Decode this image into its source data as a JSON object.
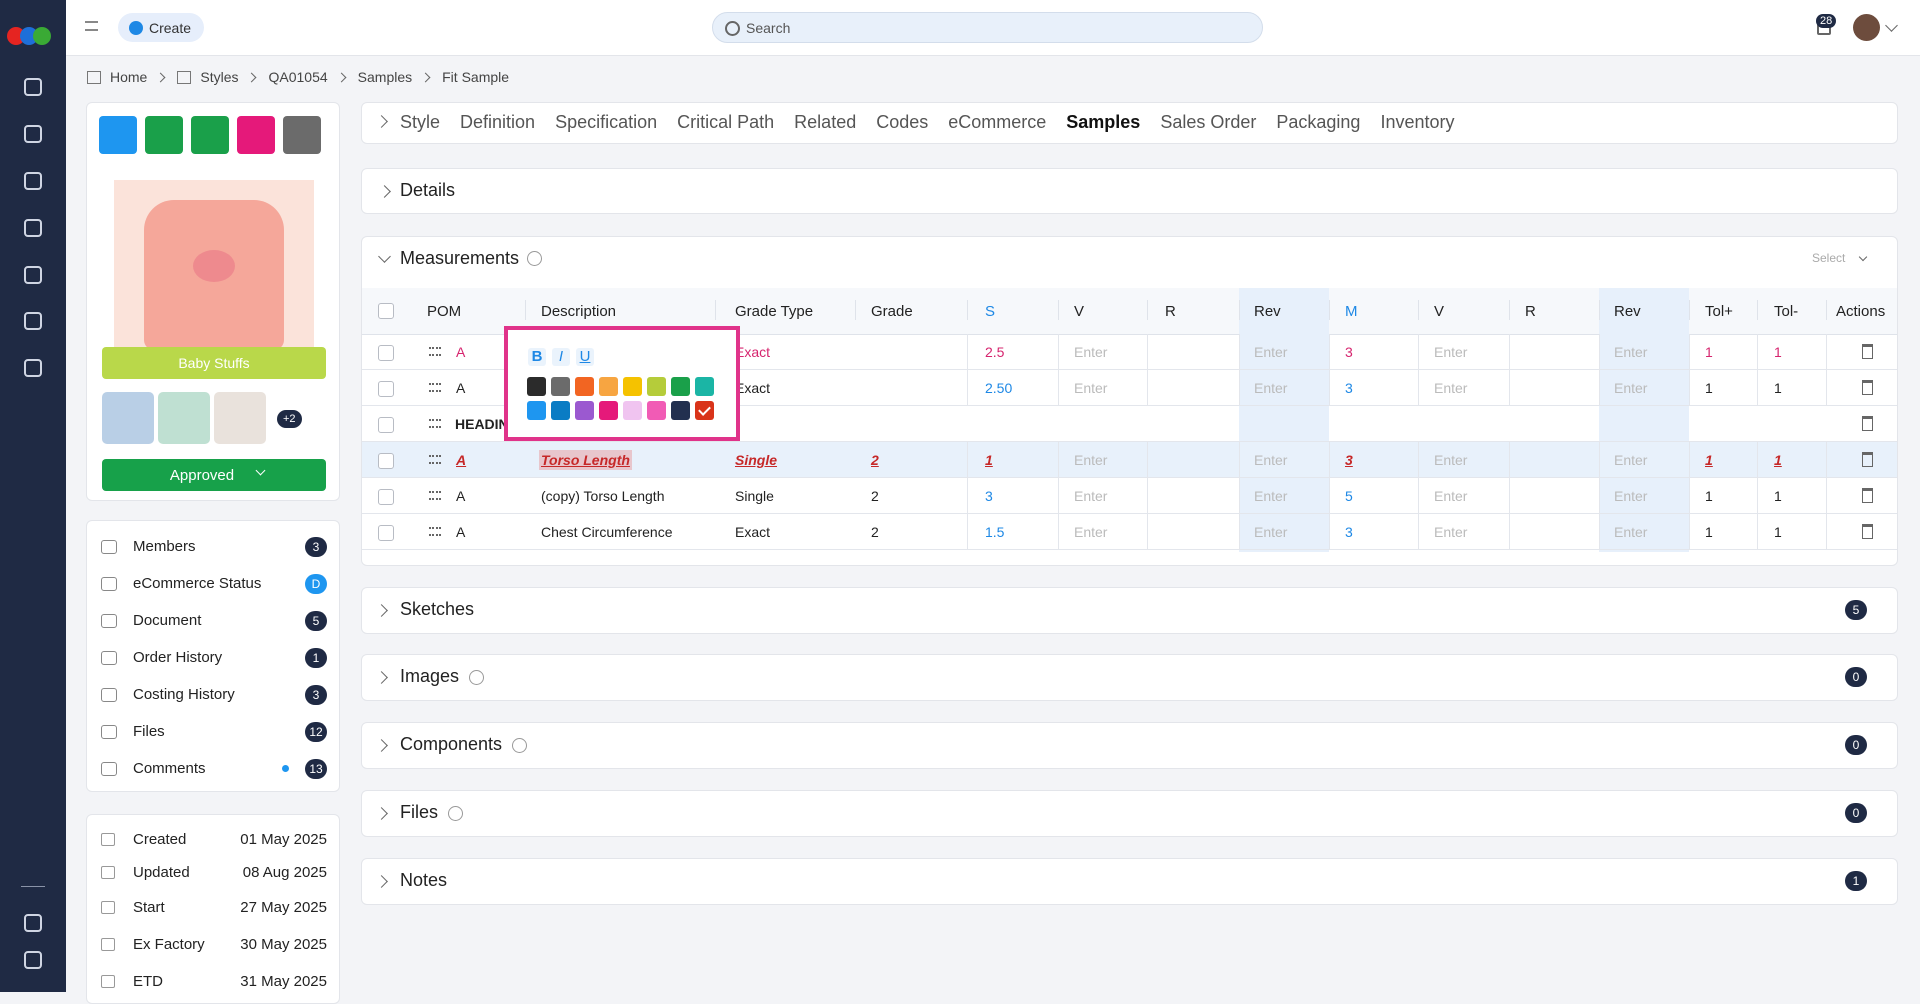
{
  "topbar": {
    "create": "Create",
    "search": "Search",
    "notifications": 28
  },
  "breadcrumb": [
    "Home",
    "Styles",
    "QA01054",
    "Samples",
    "Fit Sample"
  ],
  "tabs": [
    "Style",
    "Definition",
    "Specification",
    "Critical Path",
    "Related",
    "Codes",
    "eCommerce",
    "Samples",
    "Sales Order",
    "Packaging",
    "Inventory"
  ],
  "product": {
    "label": "Baby Stuffs",
    "more": "+2",
    "status": "Approved"
  },
  "menu": [
    {
      "label": "Members",
      "count": 3
    },
    {
      "label": "eCommerce Status",
      "count": "D"
    },
    {
      "label": "Document",
      "count": 5
    },
    {
      "label": "Order History",
      "count": 1
    },
    {
      "label": "Costing History",
      "count": 3
    },
    {
      "label": "Files",
      "count": 12
    },
    {
      "label": "Comments",
      "count": 13
    }
  ],
  "dates": [
    {
      "label": "Created",
      "value": "01 May 2025"
    },
    {
      "label": "Updated",
      "value": "08 Aug 2025"
    },
    {
      "label": "Start",
      "value": "27 May 2025"
    },
    {
      "label": "Ex Factory",
      "value": "30 May 2025"
    },
    {
      "label": "ETD",
      "value": "31 May 2025"
    }
  ],
  "details": {
    "title": "Details"
  },
  "measurements": {
    "title": "Measurements",
    "select": "Select",
    "columns": [
      "POM",
      "Description",
      "Grade Type",
      "Grade",
      "S",
      "V",
      "R",
      "Rev",
      "M",
      "V",
      "R",
      "Rev",
      "Tol+",
      "Tol-",
      "Actions"
    ],
    "rows": [
      [
        "A",
        null,
        "Exact",
        null,
        "2.5",
        "Enter",
        null,
        "Enter",
        "3",
        "Enter",
        null,
        "Enter",
        "1",
        "1"
      ],
      [
        "A",
        null,
        "Exact",
        null,
        "2.50",
        "Enter",
        null,
        "Enter",
        "3",
        "Enter",
        null,
        "Enter",
        "1",
        "1"
      ],
      [
        "HEADING",
        null,
        null,
        null,
        null,
        null,
        null,
        null,
        null,
        null,
        null,
        null,
        null,
        null
      ],
      [
        "A",
        "Torso Length",
        "Single",
        "2",
        "1",
        "Enter",
        null,
        "Enter",
        "3",
        "Enter",
        null,
        "Enter",
        "1",
        "1"
      ],
      [
        "A",
        "(copy) Torso Length",
        "Single",
        "2",
        "3",
        "Enter",
        null,
        "Enter",
        "5",
        "Enter",
        null,
        "Enter",
        "1",
        "1"
      ],
      [
        "A",
        "Chest Circumference",
        "Exact",
        "2",
        "1.5",
        "Enter",
        null,
        "Enter",
        "3",
        "Enter",
        null,
        "Enter",
        "1",
        "1"
      ]
    ]
  },
  "sections": [
    {
      "title": "Sketches",
      "count": 5
    },
    {
      "title": "Images",
      "count": 0
    },
    {
      "title": "Components",
      "count": 0
    },
    {
      "title": "Files",
      "count": 0
    },
    {
      "title": "Notes",
      "count": 1
    }
  ],
  "format_popup": {
    "buttons": [
      "B",
      "I",
      "U"
    ],
    "swatches": [
      "#2b2b2b",
      "#6b6b6b",
      "#f26522",
      "#f7a541",
      "#f5c200",
      "#b5cc3a",
      "#1aa04a",
      "#1bb5a5",
      "#1e96f0",
      "#0a7cc4",
      "#9b59d0",
      "#e5197a",
      "#f0c4f0",
      "#f15bb5",
      "#22304f",
      "#d9341a"
    ]
  }
}
